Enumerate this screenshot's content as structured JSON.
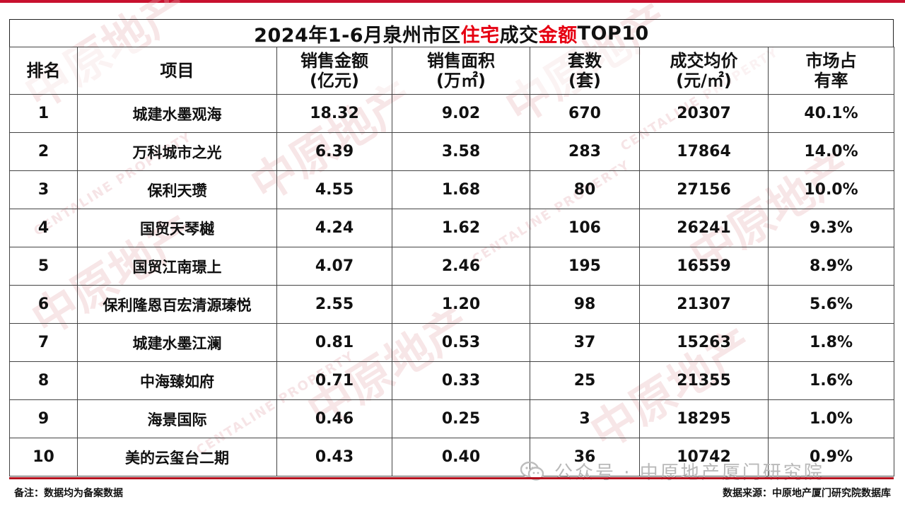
{
  "title": {
    "prefix": "2024年1-6月泉州市区",
    "highlight1": "住宅",
    "middle": "成交",
    "highlight2": "金额",
    "suffix": "TOP10"
  },
  "headers": [
    [
      "排名"
    ],
    [
      "项目"
    ],
    [
      "销售金额",
      "(亿元)"
    ],
    [
      "销售面积",
      "(万㎡)"
    ],
    [
      "套数",
      "(套)"
    ],
    [
      "成交均价",
      "(元/㎡)"
    ],
    [
      "市场占",
      "有率"
    ]
  ],
  "rows": [
    [
      "1",
      "城建水墨观海",
      "18.32",
      "9.02",
      "670",
      "20307",
      "40.1%"
    ],
    [
      "2",
      "万科城市之光",
      "6.39",
      "3.58",
      "283",
      "17864",
      "14.0%"
    ],
    [
      "3",
      "保利天瓒",
      "4.55",
      "1.68",
      "80",
      "27156",
      "10.0%"
    ],
    [
      "4",
      "国贸天琴樾",
      "4.24",
      "1.62",
      "106",
      "26241",
      "9.3%"
    ],
    [
      "5",
      "国贸江南璟上",
      "4.07",
      "2.46",
      "195",
      "16559",
      "8.9%"
    ],
    [
      "6",
      "保利隆恩百宏清源瑧悦",
      "2.55",
      "1.20",
      "98",
      "21307",
      "5.6%"
    ],
    [
      "7",
      "城建水墨江澜",
      "0.81",
      "0.53",
      "37",
      "15263",
      "1.8%"
    ],
    [
      "8",
      "中海臻如府",
      "0.71",
      "0.33",
      "25",
      "21355",
      "1.6%"
    ],
    [
      "9",
      "海景国际",
      "0.46",
      "0.25",
      "3",
      "18295",
      "1.0%"
    ],
    [
      "10",
      "美的云玺台二期",
      "0.43",
      "0.40",
      "36",
      "10742",
      "0.9%"
    ]
  ],
  "footer": {
    "note": "备注：数据均为备案数据",
    "source": "数据来源：中原地产厦门研究院数据库"
  },
  "watermark": {
    "text": "中原地产",
    "english": "CENTALINE PROPERTY"
  },
  "wechat_label": "公众号 · 中原地产厦门研究院",
  "colors": {
    "accent_red": "#e60012",
    "rule_red": "#b50f1d",
    "watermark": "#e8b4b8"
  }
}
